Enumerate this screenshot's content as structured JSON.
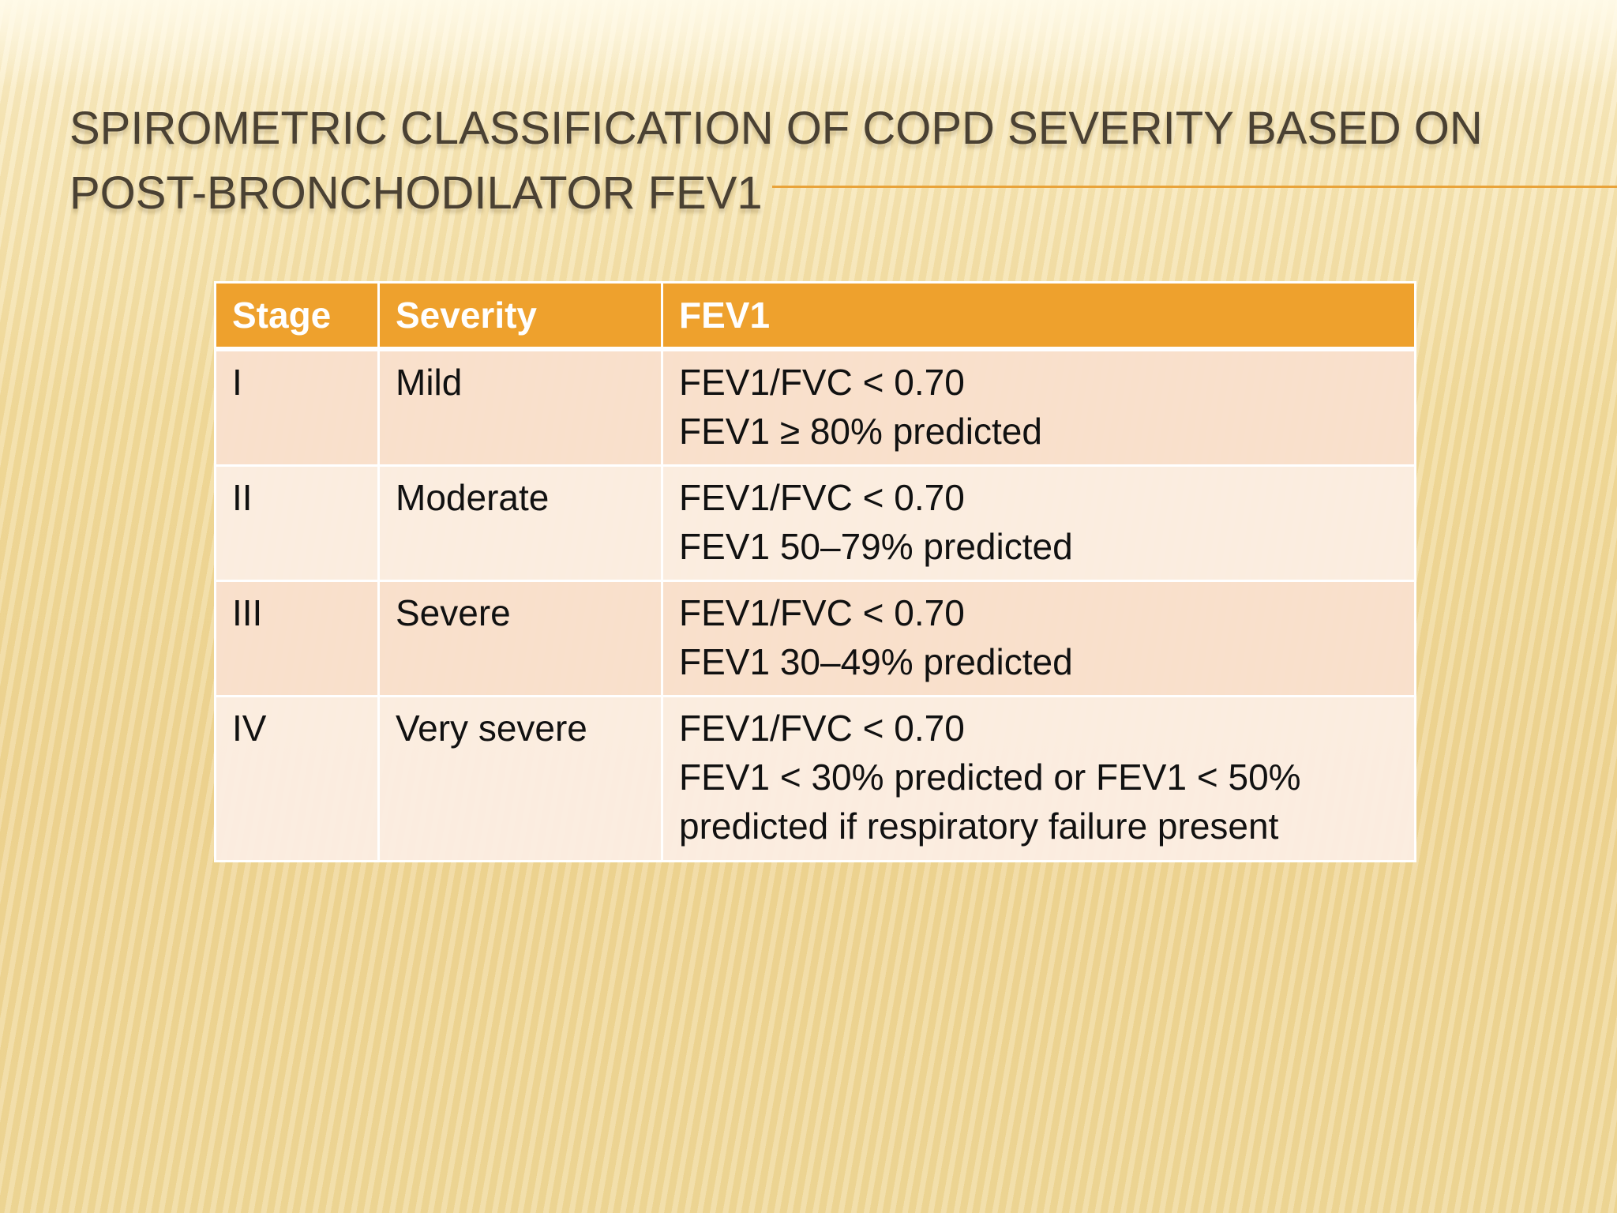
{
  "slide": {
    "title": "Spirometric classification of COPD severity based on post-bronchodilator FEV1"
  },
  "table": {
    "headers": [
      "Stage",
      "Severity",
      "FEV1"
    ],
    "rows": [
      {
        "stage": "I",
        "severity": "Mild",
        "fev1": [
          "FEV1/FVC < 0.70",
          "FEV1 ≥ 80% predicted"
        ]
      },
      {
        "stage": "II",
        "severity": "Moderate",
        "fev1": [
          "FEV1/FVC < 0.70",
          "FEV1 50–79% predicted"
        ]
      },
      {
        "stage": "III",
        "severity": "Severe",
        "fev1": [
          "FEV1/FVC < 0.70",
          "FEV1 30–49% predicted"
        ]
      },
      {
        "stage": "IV",
        "severity": "Very severe",
        "fev1": [
          "FEV1/FVC < 0.70",
          "FEV1 < 30% predicted or FEV1 < 50%",
          "predicted if respiratory failure present"
        ]
      }
    ]
  },
  "colors": {
    "header_bg": "#eea12d",
    "accent_line": "#e9a33a",
    "title_text": "#4a4133"
  }
}
